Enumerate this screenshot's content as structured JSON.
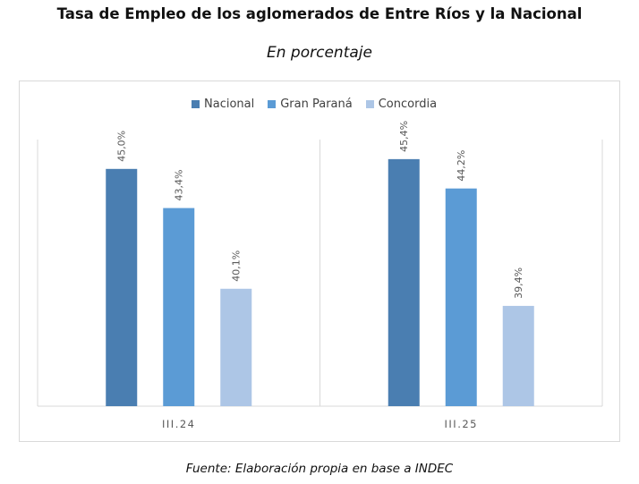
{
  "header": {
    "title": "Tasa de Empleo de los aglomerados de Entre Ríos y la Nacional",
    "subtitle": "En porcentaje"
  },
  "footer": {
    "source": "Fuente: Elaboración propia en base a INDEC"
  },
  "chart_data": {
    "type": "bar",
    "title": "",
    "xlabel": "",
    "ylabel": "",
    "categories": [
      "III.24",
      "III.25"
    ],
    "series": [
      {
        "name": "Nacional",
        "color": "#4a7eb1",
        "values": [
          45.0,
          45.4
        ],
        "labels": [
          "45,0%",
          "45,4%"
        ]
      },
      {
        "name": "Gran Paraná",
        "color": "#5b9bd5",
        "values": [
          43.4,
          44.2
        ],
        "labels": [
          "43,4%",
          "44,2%"
        ]
      },
      {
        "name": "Concordia",
        "color": "#adc6e6",
        "values": [
          40.1,
          39.4
        ],
        "labels": [
          "40,1%",
          "39,4%"
        ]
      }
    ],
    "ylim": [
      35.3,
      46.2
    ],
    "grid": false,
    "legend_position": "top"
  }
}
